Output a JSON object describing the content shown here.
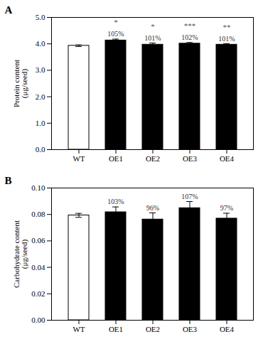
{
  "chart_data": [
    {
      "type": "bar",
      "panel_label": "A",
      "categories": [
        "WT",
        "OE1",
        "OE2",
        "OE3",
        "OE4"
      ],
      "values": [
        3.93,
        4.13,
        3.97,
        4.01,
        3.97
      ],
      "errors": [
        0.03,
        0.05,
        0.06,
        0.04,
        0.04
      ],
      "colors": [
        "white",
        "black",
        "black",
        "black",
        "black"
      ],
      "percent_labels": [
        null,
        "105%",
        "101%",
        "102%",
        "101%"
      ],
      "significance": [
        null,
        "*",
        "*",
        "***",
        "**"
      ],
      "ylabel": "Protein content\n(μg/seed)",
      "ylim": [
        0.0,
        5.0
      ],
      "yticks": [
        {
          "value": 0.0,
          "label": "0.0"
        },
        {
          "value": 1.0,
          "label": "1.0"
        },
        {
          "value": 2.0,
          "label": "2.0"
        },
        {
          "value": 3.0,
          "label": "3.0"
        },
        {
          "value": 4.0,
          "label": "4.0"
        },
        {
          "value": 5.0,
          "label": "5.0"
        }
      ]
    },
    {
      "type": "bar",
      "panel_label": "B",
      "categories": [
        "WT",
        "OE1",
        "OE2",
        "OE3",
        "OE4"
      ],
      "values": [
        0.0793,
        0.0817,
        0.0762,
        0.0848,
        0.0769
      ],
      "errors": [
        0.0015,
        0.004,
        0.005,
        0.005,
        0.004
      ],
      "colors": [
        "white",
        "black",
        "black",
        "black",
        "black"
      ],
      "percent_labels": [
        null,
        "103%",
        "96%",
        "107%",
        "97%"
      ],
      "ylabel": "Carbohydrate content\n(μg/seed)",
      "ylim": [
        0.0,
        0.1
      ],
      "yticks": [
        {
          "value": 0.0,
          "label": "0.00"
        },
        0.02,
        0.04,
        0.06,
        0.08,
        {
          "value": 0.1,
          "label": "0.10"
        }
      ]
    }
  ]
}
